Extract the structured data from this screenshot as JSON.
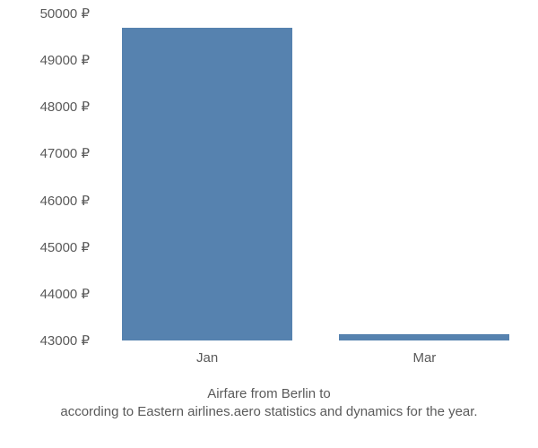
{
  "chart": {
    "type": "bar",
    "background_color": "#ffffff",
    "text_color": "#5a5a5a",
    "font_size": 15,
    "y_axis": {
      "min": 43000,
      "max": 50000,
      "tick_step": 1000,
      "suffix": " ₽",
      "ticks": [
        {
          "value": 43000,
          "label": "43000 ₽"
        },
        {
          "value": 44000,
          "label": "44000 ₽"
        },
        {
          "value": 45000,
          "label": "45000 ₽"
        },
        {
          "value": 46000,
          "label": "46000 ₽"
        },
        {
          "value": 47000,
          "label": "47000 ₽"
        },
        {
          "value": 48000,
          "label": "48000 ₽"
        },
        {
          "value": 49000,
          "label": "49000 ₽"
        },
        {
          "value": 50000,
          "label": "50000 ₽"
        }
      ]
    },
    "x_axis": {
      "categories": [
        "Jan",
        "Mar"
      ]
    },
    "bars": [
      {
        "category": "Jan",
        "value": 49700,
        "color": "#5682af",
        "center_frac": 0.255,
        "width_frac": 0.4
      },
      {
        "category": "Mar",
        "value": 43130,
        "color": "#5682af",
        "center_frac": 0.765,
        "width_frac": 0.4
      }
    ],
    "caption": {
      "line1": "Airfare from Berlin to",
      "line2_overlapped": "according to Eastern airlines.aero statistics and dynamics for the year."
    }
  }
}
